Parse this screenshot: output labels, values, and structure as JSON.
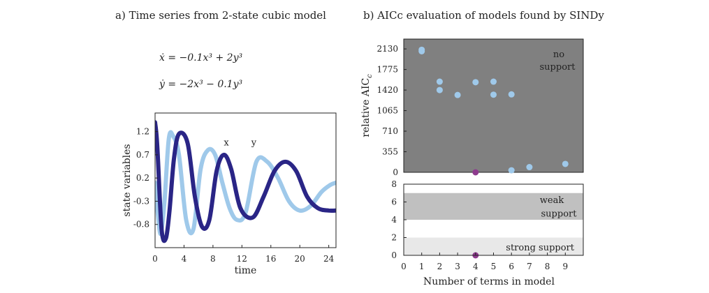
{
  "panel_a": {
    "title": "a) Time series from 2-state cubic model",
    "eq_x": "ẋ = −0.1x³ + 2y³",
    "eq_y": "ẏ = −2x³ − 0.1y³"
  },
  "panel_b": {
    "title": "b) AICc evaluation of models found by SINDy"
  },
  "colors": {
    "x": "#2a2586",
    "y": "#9fc9ea",
    "top_bg": "#808080",
    "magenta": "#8e3b8e",
    "weak": "#c0c0c0",
    "strong": "#e8e8e8"
  },
  "chart_data": [
    {
      "type": "line",
      "title": "a) Time series from 2-state cubic model",
      "xlabel": "time",
      "ylabel": "state variables",
      "xlim": [
        0,
        25
      ],
      "ylim": [
        -1.3,
        1.6
      ],
      "xticks": [
        0,
        4,
        8,
        12,
        16,
        20,
        24
      ],
      "yticks": [
        1.2,
        0.7,
        0.2,
        -0.3,
        -0.8
      ],
      "series": [
        {
          "name": "x",
          "label": "x",
          "t": [
            0,
            0.3,
            0.9,
            1.5,
            2.0,
            2.6,
            3.3,
            4.5,
            5.5,
            6.5,
            7.5,
            8.5,
            9.5,
            10.5,
            11.8,
            13.5,
            15.0,
            16.5,
            18.0,
            19.5,
            21.0,
            22.5,
            24.0,
            25.0
          ],
          "values": [
            1.4,
            0.9,
            -0.9,
            -1.1,
            -0.5,
            0.6,
            1.15,
            0.95,
            -0.2,
            -0.85,
            -0.7,
            0.35,
            0.7,
            0.4,
            -0.45,
            -0.65,
            -0.2,
            0.35,
            0.55,
            0.35,
            -0.2,
            -0.45,
            -0.5,
            -0.5
          ]
        },
        {
          "name": "y",
          "label": "y",
          "t": [
            0,
            0.4,
            0.8,
            1.3,
            1.9,
            2.5,
            3.3,
            4.3,
            5.3,
            6.3,
            7.3,
            8.3,
            9.3,
            10.3,
            11.3,
            12.5,
            14.0,
            15.5,
            17.0,
            18.5,
            20.0,
            21.5,
            23.0,
            24.2,
            25.0
          ],
          "values": [
            0.1,
            -0.6,
            -1.0,
            -0.3,
            1.05,
            1.1,
            0.7,
            -0.7,
            -0.9,
            0.4,
            0.8,
            0.7,
            0.1,
            -0.45,
            -0.7,
            -0.55,
            0.55,
            0.55,
            0.2,
            -0.3,
            -0.5,
            -0.4,
            -0.1,
            0.05,
            0.1
          ]
        }
      ]
    },
    {
      "type": "scatter",
      "title": "b) AICc evaluation of models found by SINDy",
      "ylabel": "relative AICc",
      "xlim": [
        0,
        10
      ],
      "ylim": [
        0,
        2300
      ],
      "yticks": [
        0,
        355,
        710,
        1065,
        1420,
        1775,
        2130
      ],
      "annotation": "no support",
      "points": [
        {
          "x": 1,
          "y": 2115
        },
        {
          "x": 1,
          "y": 2090
        },
        {
          "x": 2,
          "y": 1565
        },
        {
          "x": 2,
          "y": 1420
        },
        {
          "x": 3,
          "y": 1335
        },
        {
          "x": 4,
          "y": 1555
        },
        {
          "x": 5,
          "y": 1565
        },
        {
          "x": 5,
          "y": 1340
        },
        {
          "x": 6,
          "y": 1345
        },
        {
          "x": 6,
          "y": 35
        },
        {
          "x": 7,
          "y": 90
        },
        {
          "x": 9,
          "y": 145
        }
      ],
      "highlight": [
        {
          "x": 4,
          "y": 0
        }
      ]
    },
    {
      "type": "scatter",
      "xlabel": "Number of terms in model",
      "xlim": [
        0,
        10
      ],
      "ylim": [
        0,
        8
      ],
      "xticks": [
        0,
        1,
        2,
        3,
        4,
        5,
        6,
        7,
        8,
        9
      ],
      "yticks": [
        0,
        2,
        4,
        6,
        8
      ],
      "bands": [
        {
          "from": 4,
          "to": 7,
          "label": "weak support",
          "label_lines": [
            "weak",
            "support"
          ]
        },
        {
          "from": 0,
          "to": 2,
          "label": "strong support",
          "label_lines": [
            "strong support"
          ]
        }
      ],
      "highlight": [
        {
          "x": 4,
          "y": 0
        }
      ]
    }
  ]
}
